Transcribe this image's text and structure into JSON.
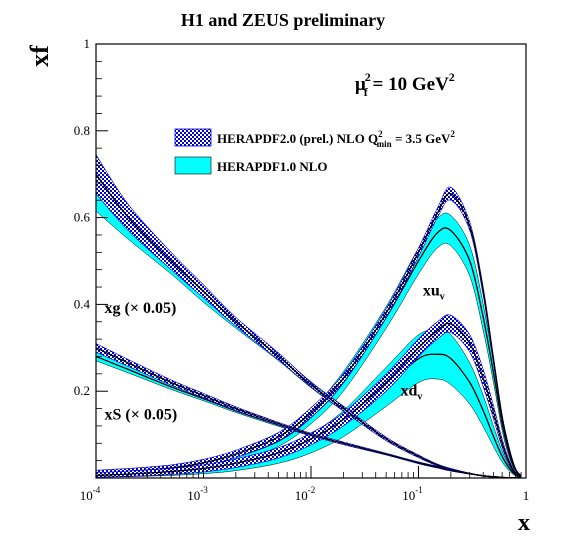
{
  "chart_data": {
    "type": "area",
    "title": "H1 and ZEUS preliminary",
    "ylabel": "xf",
    "xlabel": "x",
    "x_scale": "log",
    "xlim": [
      0.0001,
      1
    ],
    "ylim": [
      0,
      1
    ],
    "grid": false,
    "x_ticks": [
      {
        "value": 0.0001,
        "base": "10",
        "exp": "-4"
      },
      {
        "value": 0.001,
        "base": "10",
        "exp": "-3"
      },
      {
        "value": 0.01,
        "base": "10",
        "exp": "-2"
      },
      {
        "value": 0.1,
        "base": "10",
        "exp": "-1"
      },
      {
        "value": 1,
        "base": "1",
        "exp": ""
      }
    ],
    "y_ticks": [
      {
        "value": 0.2,
        "label": "0.2"
      },
      {
        "value": 0.4,
        "label": "0.4"
      },
      {
        "value": 0.6,
        "label": "0.6"
      },
      {
        "value": 0.8,
        "label": "0.8"
      },
      {
        "value": 1.0,
        "label": "1"
      }
    ],
    "scale_label": {
      "main": "μ",
      "sub": "f",
      "sup": "2",
      "value": " = 10 GeV",
      "unit_sup": "2"
    },
    "legend": {
      "position": "top-right",
      "entries": [
        {
          "series": "HERAPDF2.0",
          "label": "HERAPDF2.0 (prel.) NLO Q",
          "sup": "2",
          "sub": "min",
          "suffix": " = 3.5 GeV",
          "suffix_sup": "2",
          "style": "hatched-blue"
        },
        {
          "series": "HERAPDF1.0",
          "label": "HERAPDF1.0 NLO",
          "style": "cyan"
        }
      ]
    },
    "annotations": [
      {
        "id": "xg",
        "text": "xg (× 0.05)",
        "x": 0.00012,
        "y": 0.38
      },
      {
        "id": "xS",
        "text": "xS (× 0.05)",
        "x": 0.00012,
        "y": 0.135
      },
      {
        "id": "xuv",
        "main": "xu",
        "sub": "v",
        "x": 0.11,
        "y": 0.42
      },
      {
        "id": "xdv",
        "main": "xd",
        "sub": "v",
        "x": 0.068,
        "y": 0.19
      }
    ],
    "x": [
      0.0001,
      0.0002,
      0.0005,
      0.001,
      0.002,
      0.005,
      0.01,
      0.02,
      0.05,
      0.1,
      0.15,
      0.2,
      0.3,
      0.4,
      0.5,
      0.6,
      0.7,
      0.8,
      0.9
    ],
    "series": [
      {
        "name": "HERAPDF2.0",
        "distribution": "xu_v",
        "central": [
          0.01,
          0.015,
          0.023,
          0.035,
          0.055,
          0.095,
          0.15,
          0.23,
          0.38,
          0.52,
          0.61,
          0.655,
          0.58,
          0.43,
          0.27,
          0.14,
          0.065,
          0.02,
          0.005
        ],
        "lower": [
          0.005,
          0.009,
          0.016,
          0.028,
          0.047,
          0.086,
          0.14,
          0.22,
          0.37,
          0.51,
          0.6,
          0.64,
          0.57,
          0.42,
          0.262,
          0.134,
          0.061,
          0.018,
          0.004
        ],
        "upper": [
          0.018,
          0.022,
          0.03,
          0.043,
          0.064,
          0.105,
          0.162,
          0.24,
          0.39,
          0.53,
          0.622,
          0.67,
          0.59,
          0.44,
          0.278,
          0.146,
          0.069,
          0.022,
          0.006
        ]
      },
      {
        "name": "HERAPDF1.0",
        "distribution": "xu_v",
        "central": [
          0.008,
          0.012,
          0.02,
          0.03,
          0.048,
          0.085,
          0.14,
          0.22,
          0.37,
          0.5,
          0.565,
          0.57,
          0.5,
          0.37,
          0.24,
          0.125,
          0.055,
          0.018,
          0.004
        ],
        "lower": [
          0.004,
          0.007,
          0.013,
          0.022,
          0.038,
          0.073,
          0.125,
          0.2,
          0.345,
          0.47,
          0.53,
          0.535,
          0.465,
          0.34,
          0.218,
          0.11,
          0.047,
          0.015,
          0.003
        ],
        "upper": [
          0.013,
          0.018,
          0.028,
          0.04,
          0.06,
          0.1,
          0.158,
          0.245,
          0.395,
          0.53,
          0.598,
          0.605,
          0.535,
          0.4,
          0.262,
          0.14,
          0.063,
          0.021,
          0.005
        ]
      },
      {
        "name": "HERAPDF2.0",
        "distribution": "xd_v",
        "central": [
          0.006,
          0.009,
          0.015,
          0.022,
          0.034,
          0.058,
          0.09,
          0.135,
          0.22,
          0.3,
          0.34,
          0.355,
          0.31,
          0.23,
          0.15,
          0.08,
          0.035,
          0.01,
          0.002
        ],
        "lower": [
          0.002,
          0.004,
          0.008,
          0.014,
          0.024,
          0.046,
          0.076,
          0.12,
          0.2,
          0.28,
          0.32,
          0.335,
          0.29,
          0.21,
          0.135,
          0.07,
          0.03,
          0.008,
          0.0015
        ],
        "upper": [
          0.012,
          0.016,
          0.022,
          0.03,
          0.044,
          0.07,
          0.104,
          0.15,
          0.24,
          0.32,
          0.36,
          0.375,
          0.33,
          0.25,
          0.165,
          0.09,
          0.04,
          0.012,
          0.003
        ]
      },
      {
        "name": "HERAPDF1.0",
        "distribution": "xd_v",
        "central": [
          0.004,
          0.007,
          0.012,
          0.018,
          0.028,
          0.05,
          0.08,
          0.125,
          0.21,
          0.275,
          0.285,
          0.275,
          0.22,
          0.155,
          0.095,
          0.05,
          0.022,
          0.007,
          0.0015
        ],
        "lower": [
          0.002,
          0.003,
          0.006,
          0.01,
          0.017,
          0.034,
          0.058,
          0.095,
          0.165,
          0.22,
          0.228,
          0.215,
          0.17,
          0.118,
          0.072,
          0.037,
          0.016,
          0.005,
          0.001
        ],
        "upper": [
          0.008,
          0.011,
          0.018,
          0.026,
          0.04,
          0.066,
          0.102,
          0.155,
          0.255,
          0.33,
          0.34,
          0.33,
          0.265,
          0.19,
          0.118,
          0.062,
          0.027,
          0.009,
          0.002
        ]
      },
      {
        "name": "HERAPDF2.0",
        "distribution": "xg_x0.05",
        "central": [
          0.7,
          0.6,
          0.5,
          0.43,
          0.36,
          0.28,
          0.215,
          0.16,
          0.09,
          0.05,
          0.03,
          0.02,
          0.01,
          0.005,
          0.003,
          0.0015,
          0.0005,
          0.0002,
          0.0
        ],
        "lower": [
          0.655,
          0.57,
          0.48,
          0.415,
          0.35,
          0.272,
          0.21,
          0.155,
          0.086,
          0.047,
          0.028,
          0.018,
          0.009,
          0.0045,
          0.0025,
          0.001,
          0.0004,
          0.0001,
          0.0
        ],
        "upper": [
          0.745,
          0.63,
          0.52,
          0.445,
          0.37,
          0.288,
          0.22,
          0.165,
          0.094,
          0.053,
          0.032,
          0.022,
          0.011,
          0.0055,
          0.0035,
          0.002,
          0.0006,
          0.0003,
          0.0
        ]
      },
      {
        "name": "HERAPDF1.0",
        "distribution": "xg_x0.05",
        "central": [
          0.66,
          0.58,
          0.49,
          0.42,
          0.355,
          0.278,
          0.215,
          0.16,
          0.09,
          0.05,
          0.03,
          0.02,
          0.01,
          0.005,
          0.003,
          0.0015,
          0.0005,
          0.0002,
          0.0
        ],
        "lower": [
          0.615,
          0.55,
          0.47,
          0.405,
          0.345,
          0.27,
          0.208,
          0.154,
          0.086,
          0.047,
          0.028,
          0.018,
          0.009,
          0.0045,
          0.0025,
          0.001,
          0.0004,
          0.0001,
          0.0
        ],
        "upper": [
          0.7,
          0.61,
          0.51,
          0.435,
          0.365,
          0.286,
          0.222,
          0.166,
          0.094,
          0.053,
          0.032,
          0.022,
          0.011,
          0.0055,
          0.0035,
          0.002,
          0.0006,
          0.0003,
          0.0
        ]
      },
      {
        "name": "HERAPDF2.0",
        "distribution": "xS_x0.05",
        "central": [
          0.3,
          0.265,
          0.22,
          0.19,
          0.16,
          0.125,
          0.1,
          0.08,
          0.055,
          0.035,
          0.025,
          0.018,
          0.01,
          0.005,
          0.0025,
          0.001,
          0.0004,
          0.0001,
          0.0
        ],
        "lower": [
          0.29,
          0.257,
          0.214,
          0.185,
          0.156,
          0.122,
          0.097,
          0.077,
          0.053,
          0.033,
          0.023,
          0.016,
          0.009,
          0.0045,
          0.002,
          0.0008,
          0.0003,
          0.0001,
          0.0
        ],
        "upper": [
          0.31,
          0.273,
          0.226,
          0.195,
          0.164,
          0.128,
          0.103,
          0.083,
          0.057,
          0.037,
          0.027,
          0.02,
          0.011,
          0.0055,
          0.003,
          0.0012,
          0.0005,
          0.0002,
          0.0
        ]
      },
      {
        "name": "HERAPDF1.0",
        "distribution": "xS_x0.05",
        "central": [
          0.28,
          0.25,
          0.21,
          0.183,
          0.155,
          0.122,
          0.1,
          0.08,
          0.055,
          0.035,
          0.025,
          0.018,
          0.01,
          0.005,
          0.0025,
          0.001,
          0.0004,
          0.0001,
          0.0
        ],
        "lower": [
          0.27,
          0.242,
          0.204,
          0.178,
          0.151,
          0.119,
          0.097,
          0.077,
          0.053,
          0.033,
          0.023,
          0.016,
          0.009,
          0.0045,
          0.002,
          0.0008,
          0.0003,
          0.0001,
          0.0
        ],
        "upper": [
          0.29,
          0.258,
          0.216,
          0.188,
          0.159,
          0.125,
          0.103,
          0.083,
          0.057,
          0.037,
          0.027,
          0.02,
          0.011,
          0.0055,
          0.003,
          0.0012,
          0.0005,
          0.0002,
          0.0
        ]
      }
    ],
    "colors": {
      "herapdf1_fill": "#00ffff",
      "herapdf2_hatch": "#0000cc",
      "central_line": "#000000",
      "frame": "#000000"
    }
  }
}
